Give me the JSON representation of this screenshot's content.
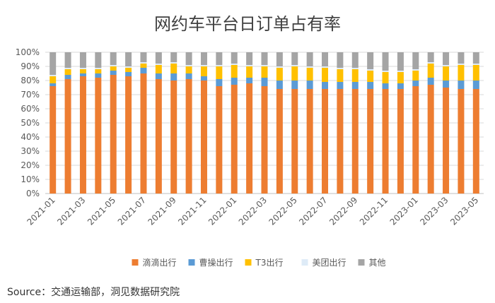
{
  "chart_data": {
    "type": "bar",
    "stacked": true,
    "normalized": true,
    "title": "网约车平台日订单占有率",
    "xlabel": "",
    "ylabel": "",
    "ylim": [
      0,
      100
    ],
    "y_ticks": [
      "0%",
      "10%",
      "20%",
      "30%",
      "40%",
      "50%",
      "60%",
      "70%",
      "80%",
      "90%",
      "100%"
    ],
    "categories": [
      "2021-01",
      "2021-02",
      "2021-03",
      "2021-04",
      "2021-05",
      "2021-06",
      "2021-07",
      "2021-08",
      "2021-09",
      "2021-10",
      "2021-11",
      "2021-12",
      "2022-01",
      "2022-02",
      "2022-03",
      "2022-04",
      "2022-05",
      "2022-06",
      "2022-07",
      "2022-08",
      "2022-09",
      "2022-10",
      "2022-11",
      "2022-12",
      "2023-01",
      "2023-02",
      "2023-03",
      "2023-04",
      "2023-05"
    ],
    "shown_x_labels": [
      "2021-01",
      "2021-03",
      "2021-05",
      "2021-07",
      "2021-09",
      "2021-11",
      "2022-01",
      "2022-03",
      "2022-05",
      "2022-07",
      "2022-09",
      "2022-11",
      "2023-01",
      "2023-03",
      "2023-05"
    ],
    "series": [
      {
        "name": "滴滴出行",
        "color": "#ED7D31",
        "values": [
          76,
          81,
          83,
          82,
          84,
          83,
          85,
          81,
          80,
          81,
          80,
          76,
          77,
          78,
          76,
          74,
          74,
          74,
          74,
          74,
          74,
          74,
          74,
          74,
          76,
          77,
          75,
          74,
          74
        ]
      },
      {
        "name": "曹操出行",
        "color": "#5B9BD5",
        "values": [
          2,
          3,
          2,
          3,
          3,
          3,
          4,
          4,
          5,
          4,
          3,
          5,
          5,
          4,
          6,
          6,
          6,
          6,
          5,
          5,
          5,
          5,
          4,
          4,
          4,
          5,
          5,
          6,
          6
        ]
      },
      {
        "name": "T3出行",
        "color": "#FFC000",
        "values": [
          5,
          4,
          3,
          3,
          3,
          3,
          3,
          6,
          7,
          5,
          7,
          9,
          9,
          8,
          8,
          9,
          10,
          9,
          10,
          9,
          9,
          8,
          8,
          8,
          7,
          10,
          10,
          11,
          11
        ]
      },
      {
        "name": "美团出行",
        "color": "#DEEBF7",
        "values": [
          1,
          1,
          1,
          1,
          1,
          1,
          1,
          1,
          1,
          1,
          1,
          1,
          1,
          1,
          1,
          1,
          1,
          1,
          1,
          1,
          1,
          1,
          1,
          1,
          1,
          1,
          1,
          1,
          1
        ]
      },
      {
        "name": "其他",
        "color": "#A5A5A5",
        "values": [
          16,
          11,
          11,
          11,
          9,
          10,
          7,
          8,
          7,
          9,
          9,
          9,
          8,
          9,
          9,
          10,
          9,
          10,
          10,
          11,
          11,
          12,
          13,
          13,
          12,
          7,
          9,
          8,
          8
        ]
      }
    ],
    "legend_position": "bottom",
    "gridlines": true
  },
  "source_text": "Source：交通运输部，洞见数据研究院"
}
